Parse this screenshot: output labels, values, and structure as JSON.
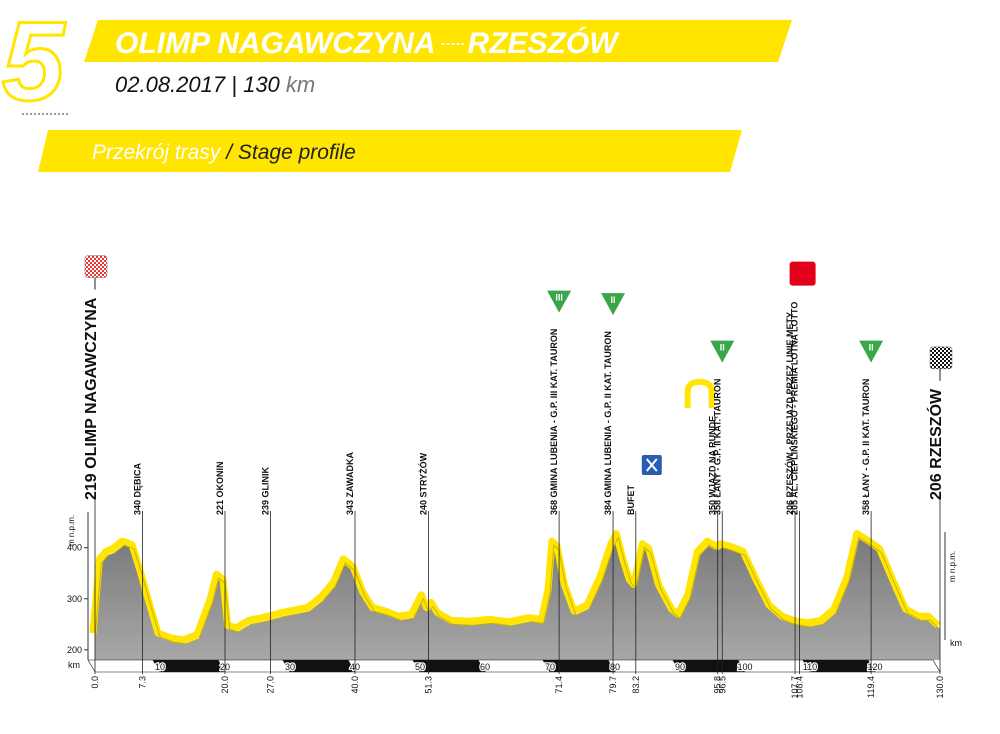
{
  "header": {
    "stage": "5",
    "start": "OLIMP NAGAWCZYNA",
    "finish": "RZESZÓW",
    "date": "02.08.2017",
    "separator": "|",
    "distance": "130",
    "unit": "km",
    "section_pl": "Przekrój trasy",
    "section_sep": "/",
    "section_en": "Stage profile"
  },
  "chart_data": {
    "type": "area",
    "x": [
      0,
      1,
      2,
      3,
      4.5,
      6,
      7.3,
      8.5,
      10,
      12,
      14,
      16,
      18,
      19,
      20,
      20.7,
      22,
      24,
      26,
      27,
      29,
      31,
      33,
      35,
      37,
      38.5,
      40,
      41.5,
      43,
      45,
      47,
      49,
      50.5,
      51.3,
      52,
      53,
      55,
      58,
      61,
      64,
      67,
      69,
      70,
      70.6,
      71.4,
      72.5,
      74,
      76,
      78,
      79.7,
      80.5,
      81.5,
      82.5,
      83.2,
      84.5,
      85.5,
      87,
      89,
      90,
      91.5,
      93,
      94.5,
      95.8,
      96.5,
      98,
      100,
      102,
      104,
      106,
      107.7,
      108.4,
      110,
      112,
      114,
      116,
      117.5,
      119.4,
      121,
      123,
      125,
      127,
      128.5,
      129.3,
      130
    ],
    "values": [
      225,
      370,
      385,
      390,
      405,
      398,
      345,
      290,
      225,
      215,
      212,
      222,
      290,
      340,
      330,
      240,
      235,
      250,
      255,
      258,
      265,
      270,
      275,
      295,
      325,
      370,
      355,
      305,
      275,
      268,
      258,
      262,
      300,
      275,
      285,
      265,
      250,
      248,
      252,
      247,
      255,
      252,
      310,
      405,
      395,
      320,
      268,
      280,
      335,
      400,
      420,
      370,
      330,
      320,
      400,
      390,
      320,
      272,
      262,
      300,
      385,
      405,
      395,
      400,
      395,
      385,
      330,
      280,
      258,
      250,
      248,
      245,
      250,
      272,
      335,
      420,
      405,
      390,
      330,
      272,
      258,
      258,
      248,
      240
    ],
    "xlim": [
      0,
      130
    ],
    "ylim": [
      180,
      470
    ],
    "yticks": [
      200,
      300,
      400
    ],
    "xticks": [
      10,
      20,
      30,
      40,
      50,
      60,
      70,
      80,
      90,
      100,
      110,
      120
    ],
    "y_label": "m n.p.m.",
    "x_label": "km",
    "color": "#ffe500",
    "fill": "#8e8e8e",
    "waypoints": [
      {
        "km": {
          "value": 0,
          "label": "0.0"
        },
        "label": "219 OLIMP NAGAWCZYNA",
        "icon": "start"
      },
      {
        "km": 7.3,
        "label": "340 DĘBICA"
      },
      {
        "km": {
          "value": 20,
          "label": "20.0"
        },
        "label": "221 OKONIN"
      },
      {
        "km": {
          "value": 27,
          "label": "27.0"
        },
        "label": "239 GLINIK"
      },
      {
        "km": {
          "value": 40,
          "label": "40.0"
        },
        "label": "343 ZAWADKA"
      },
      {
        "km": 51.3,
        "label": "240 STRYŻÓW"
      },
      {
        "km": 71.4,
        "label": "368 GMINA LUBENIA - G.P. III KAT. TAURON",
        "icon": "climb",
        "category": "III"
      },
      {
        "km": 79.7,
        "label": "384 GMINA LUBENIA - G.P. II KAT. TAURON",
        "icon": "climb",
        "category": "II"
      },
      {
        "km": 83.2,
        "label": "BUFET",
        "icon": "feed"
      },
      {
        "km": 95.8,
        "label": "350 WJAZD NA RUNDĘ",
        "icon": "loop"
      },
      {
        "km": 96.5,
        "label": "358 ŁANY - G.P. II KAT. TAURON",
        "icon": "climb",
        "category": "II"
      },
      {
        "km": 107.7,
        "label": "206 RZESZÓW - PRZEJAZD PRZEZ LINIĘ METY"
      },
      {
        "km": 108.4,
        "label": "205 AL. CIEPLIŃSKIEGO - PREMIA LOTNA LOTTO",
        "icon": "sprint"
      },
      {
        "km": 119.4,
        "label": "358 ŁANY - G.P. II KAT. TAURON",
        "icon": "climb",
        "category": "II"
      },
      {
        "km": {
          "value": 130,
          "label": "130.0"
        },
        "label": "206 RZESZÓW",
        "icon": "finish"
      }
    ]
  }
}
